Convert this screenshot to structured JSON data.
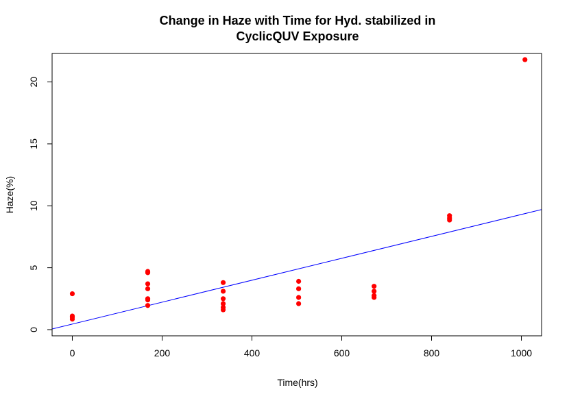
{
  "chart_data": {
    "type": "scatter",
    "title_lines": [
      "Change in Haze with Time for Hyd. stabilized in",
      "CyclicQUV Exposure"
    ],
    "xlabel": "Time(hrs)",
    "ylabel": "Haze(%)",
    "xlim": [
      -45,
      1045
    ],
    "ylim": [
      -0.5,
      22.3
    ],
    "xticks": [
      0,
      200,
      400,
      600,
      800,
      1000
    ],
    "yticks": [
      0,
      5,
      10,
      15,
      20
    ],
    "grid": false,
    "legend": "none",
    "point_color": "#ff0000",
    "line_color": "#0000ff",
    "points": [
      {
        "x": 0,
        "y": 2.9
      },
      {
        "x": 0,
        "y": 1.1
      },
      {
        "x": 0,
        "y": 1.0
      },
      {
        "x": 0,
        "y": 0.85
      },
      {
        "x": 168,
        "y": 4.7
      },
      {
        "x": 168,
        "y": 4.6
      },
      {
        "x": 168,
        "y": 3.7
      },
      {
        "x": 168,
        "y": 3.3
      },
      {
        "x": 168,
        "y": 2.5
      },
      {
        "x": 168,
        "y": 2.4
      },
      {
        "x": 168,
        "y": 1.95
      },
      {
        "x": 336,
        "y": 3.8
      },
      {
        "x": 336,
        "y": 3.1
      },
      {
        "x": 336,
        "y": 2.5
      },
      {
        "x": 336,
        "y": 2.1
      },
      {
        "x": 336,
        "y": 1.8
      },
      {
        "x": 336,
        "y": 1.6
      },
      {
        "x": 504,
        "y": 3.9
      },
      {
        "x": 504,
        "y": 3.3
      },
      {
        "x": 504,
        "y": 2.6
      },
      {
        "x": 504,
        "y": 2.1
      },
      {
        "x": 672,
        "y": 3.5
      },
      {
        "x": 672,
        "y": 3.1
      },
      {
        "x": 672,
        "y": 2.75
      },
      {
        "x": 672,
        "y": 2.6
      },
      {
        "x": 840,
        "y": 9.2
      },
      {
        "x": 840,
        "y": 9.0
      },
      {
        "x": 840,
        "y": 8.85
      },
      {
        "x": 1008,
        "y": 21.8
      }
    ],
    "fit_line": {
      "intercept": 0.45,
      "slope": 0.00885
    }
  }
}
